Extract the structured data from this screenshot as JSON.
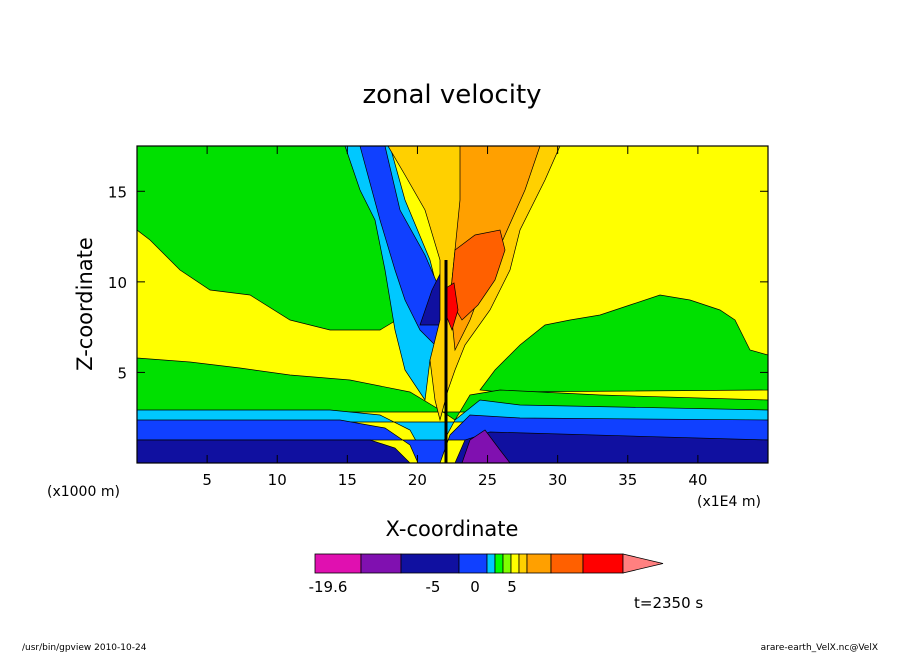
{
  "chart_data": {
    "type": "heatmap",
    "title": "zonal velocity",
    "xlabel": "X-coordinate",
    "ylabel": "Z-coordinate",
    "x_unit": "(x1E4 m)",
    "y_unit": "(x1000 m)",
    "xlim": [
      0,
      45
    ],
    "ylim": [
      0,
      17.5
    ],
    "x_ticks": [
      "5",
      "10",
      "15",
      "20",
      "25",
      "30",
      "35",
      "40"
    ],
    "y_ticks": [
      "5",
      "10",
      "15"
    ],
    "colorbar": {
      "colors": [
        "#e010b0",
        "#8010b0",
        "#1010a0",
        "#1040ff",
        "#00c8ff",
        "#00ff00",
        "#80ff00",
        "#ffff00",
        "#ffd000",
        "#ffa000",
        "#ff6000",
        "#ff0000",
        "#ff8080"
      ],
      "labels": [
        "-19.6",
        "-5",
        "0",
        "5"
      ]
    },
    "regions": {
      "background": "#ffff00",
      "upper_left_green": "#00e000",
      "low_levels": [
        "#00c8ff",
        "#1040ff",
        "#1010a0"
      ]
    },
    "time_label": "t=2350 s"
  },
  "footer": {
    "left": "/usr/bin/gpview   2010-10-24",
    "right": "arare-earth_VelX.nc@VelX"
  }
}
